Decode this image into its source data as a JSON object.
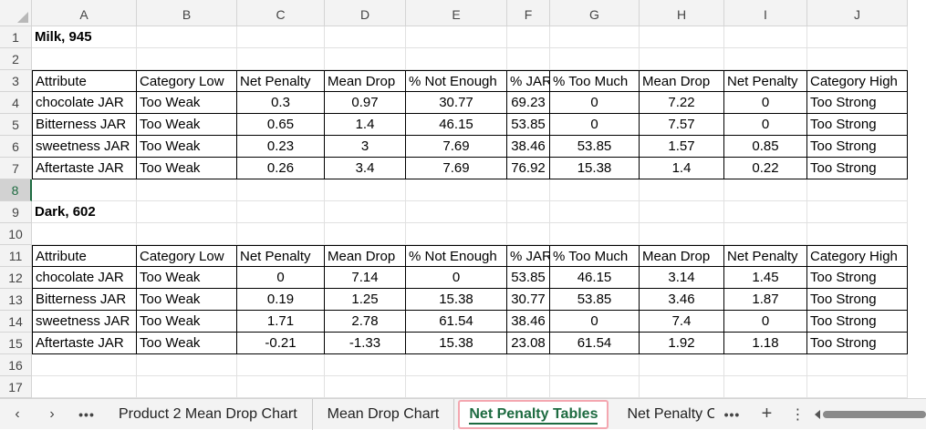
{
  "columns": [
    "A",
    "B",
    "C",
    "D",
    "E",
    "F",
    "G",
    "H",
    "I",
    "J"
  ],
  "rows": [
    "1",
    "2",
    "3",
    "4",
    "5",
    "6",
    "7",
    "8",
    "9",
    "10",
    "11",
    "12",
    "13",
    "14",
    "15",
    "16",
    "17"
  ],
  "selected_row": "8",
  "table1": {
    "title": "Milk, 945",
    "headers": [
      "Attribute",
      "Category Low",
      "Net Penalty",
      "Mean Drop",
      "% Not Enough",
      "% JAR",
      "% Too Much",
      "Mean Drop",
      "Net Penalty",
      "Category High"
    ],
    "rows": [
      [
        "chocolate JAR",
        "Too Weak",
        "0.3",
        "0.97",
        "30.77",
        "69.23",
        "0",
        "7.22",
        "0",
        "Too Strong"
      ],
      [
        "Bitterness JAR",
        "Too Weak",
        "0.65",
        "1.4",
        "46.15",
        "53.85",
        "0",
        "7.57",
        "0",
        "Too Strong"
      ],
      [
        "sweetness JAR",
        "Too Weak",
        "0.23",
        "3",
        "7.69",
        "38.46",
        "53.85",
        "1.57",
        "0.85",
        "Too Strong"
      ],
      [
        "Aftertaste JAR",
        "Too Weak",
        "0.26",
        "3.4",
        "7.69",
        "76.92",
        "15.38",
        "1.4",
        "0.22",
        "Too Strong"
      ]
    ]
  },
  "table2": {
    "title": "Dark, 602",
    "headers": [
      "Attribute",
      "Category Low",
      "Net Penalty",
      "Mean Drop",
      "% Not Enough",
      "% JAR",
      "% Too Much",
      "Mean Drop",
      "Net Penalty",
      "Category High"
    ],
    "rows": [
      [
        "chocolate JAR",
        "Too Weak",
        "0",
        "7.14",
        "0",
        "53.85",
        "46.15",
        "3.14",
        "1.45",
        "Too Strong"
      ],
      [
        "Bitterness JAR",
        "Too Weak",
        "0.19",
        "1.25",
        "15.38",
        "30.77",
        "53.85",
        "3.46",
        "1.87",
        "Too Strong"
      ],
      [
        "sweetness JAR",
        "Too Weak",
        "1.71",
        "2.78",
        "61.54",
        "38.46",
        "0",
        "7.4",
        "0",
        "Too Strong"
      ],
      [
        "Aftertaste JAR",
        "Too Weak",
        "-0.21",
        "-1.33",
        "15.38",
        "23.08",
        "61.54",
        "1.92",
        "1.18",
        "Too Strong"
      ]
    ]
  },
  "tabs": {
    "prev_icon": "‹",
    "next_icon": "›",
    "more_left": "•••",
    "items": [
      "Product 2 Mean Drop Chart",
      "Mean Drop Chart",
      "Net Penalty Tables",
      "Net Penalty C"
    ],
    "more_right": "•••",
    "add": "+",
    "options": "⋮"
  }
}
